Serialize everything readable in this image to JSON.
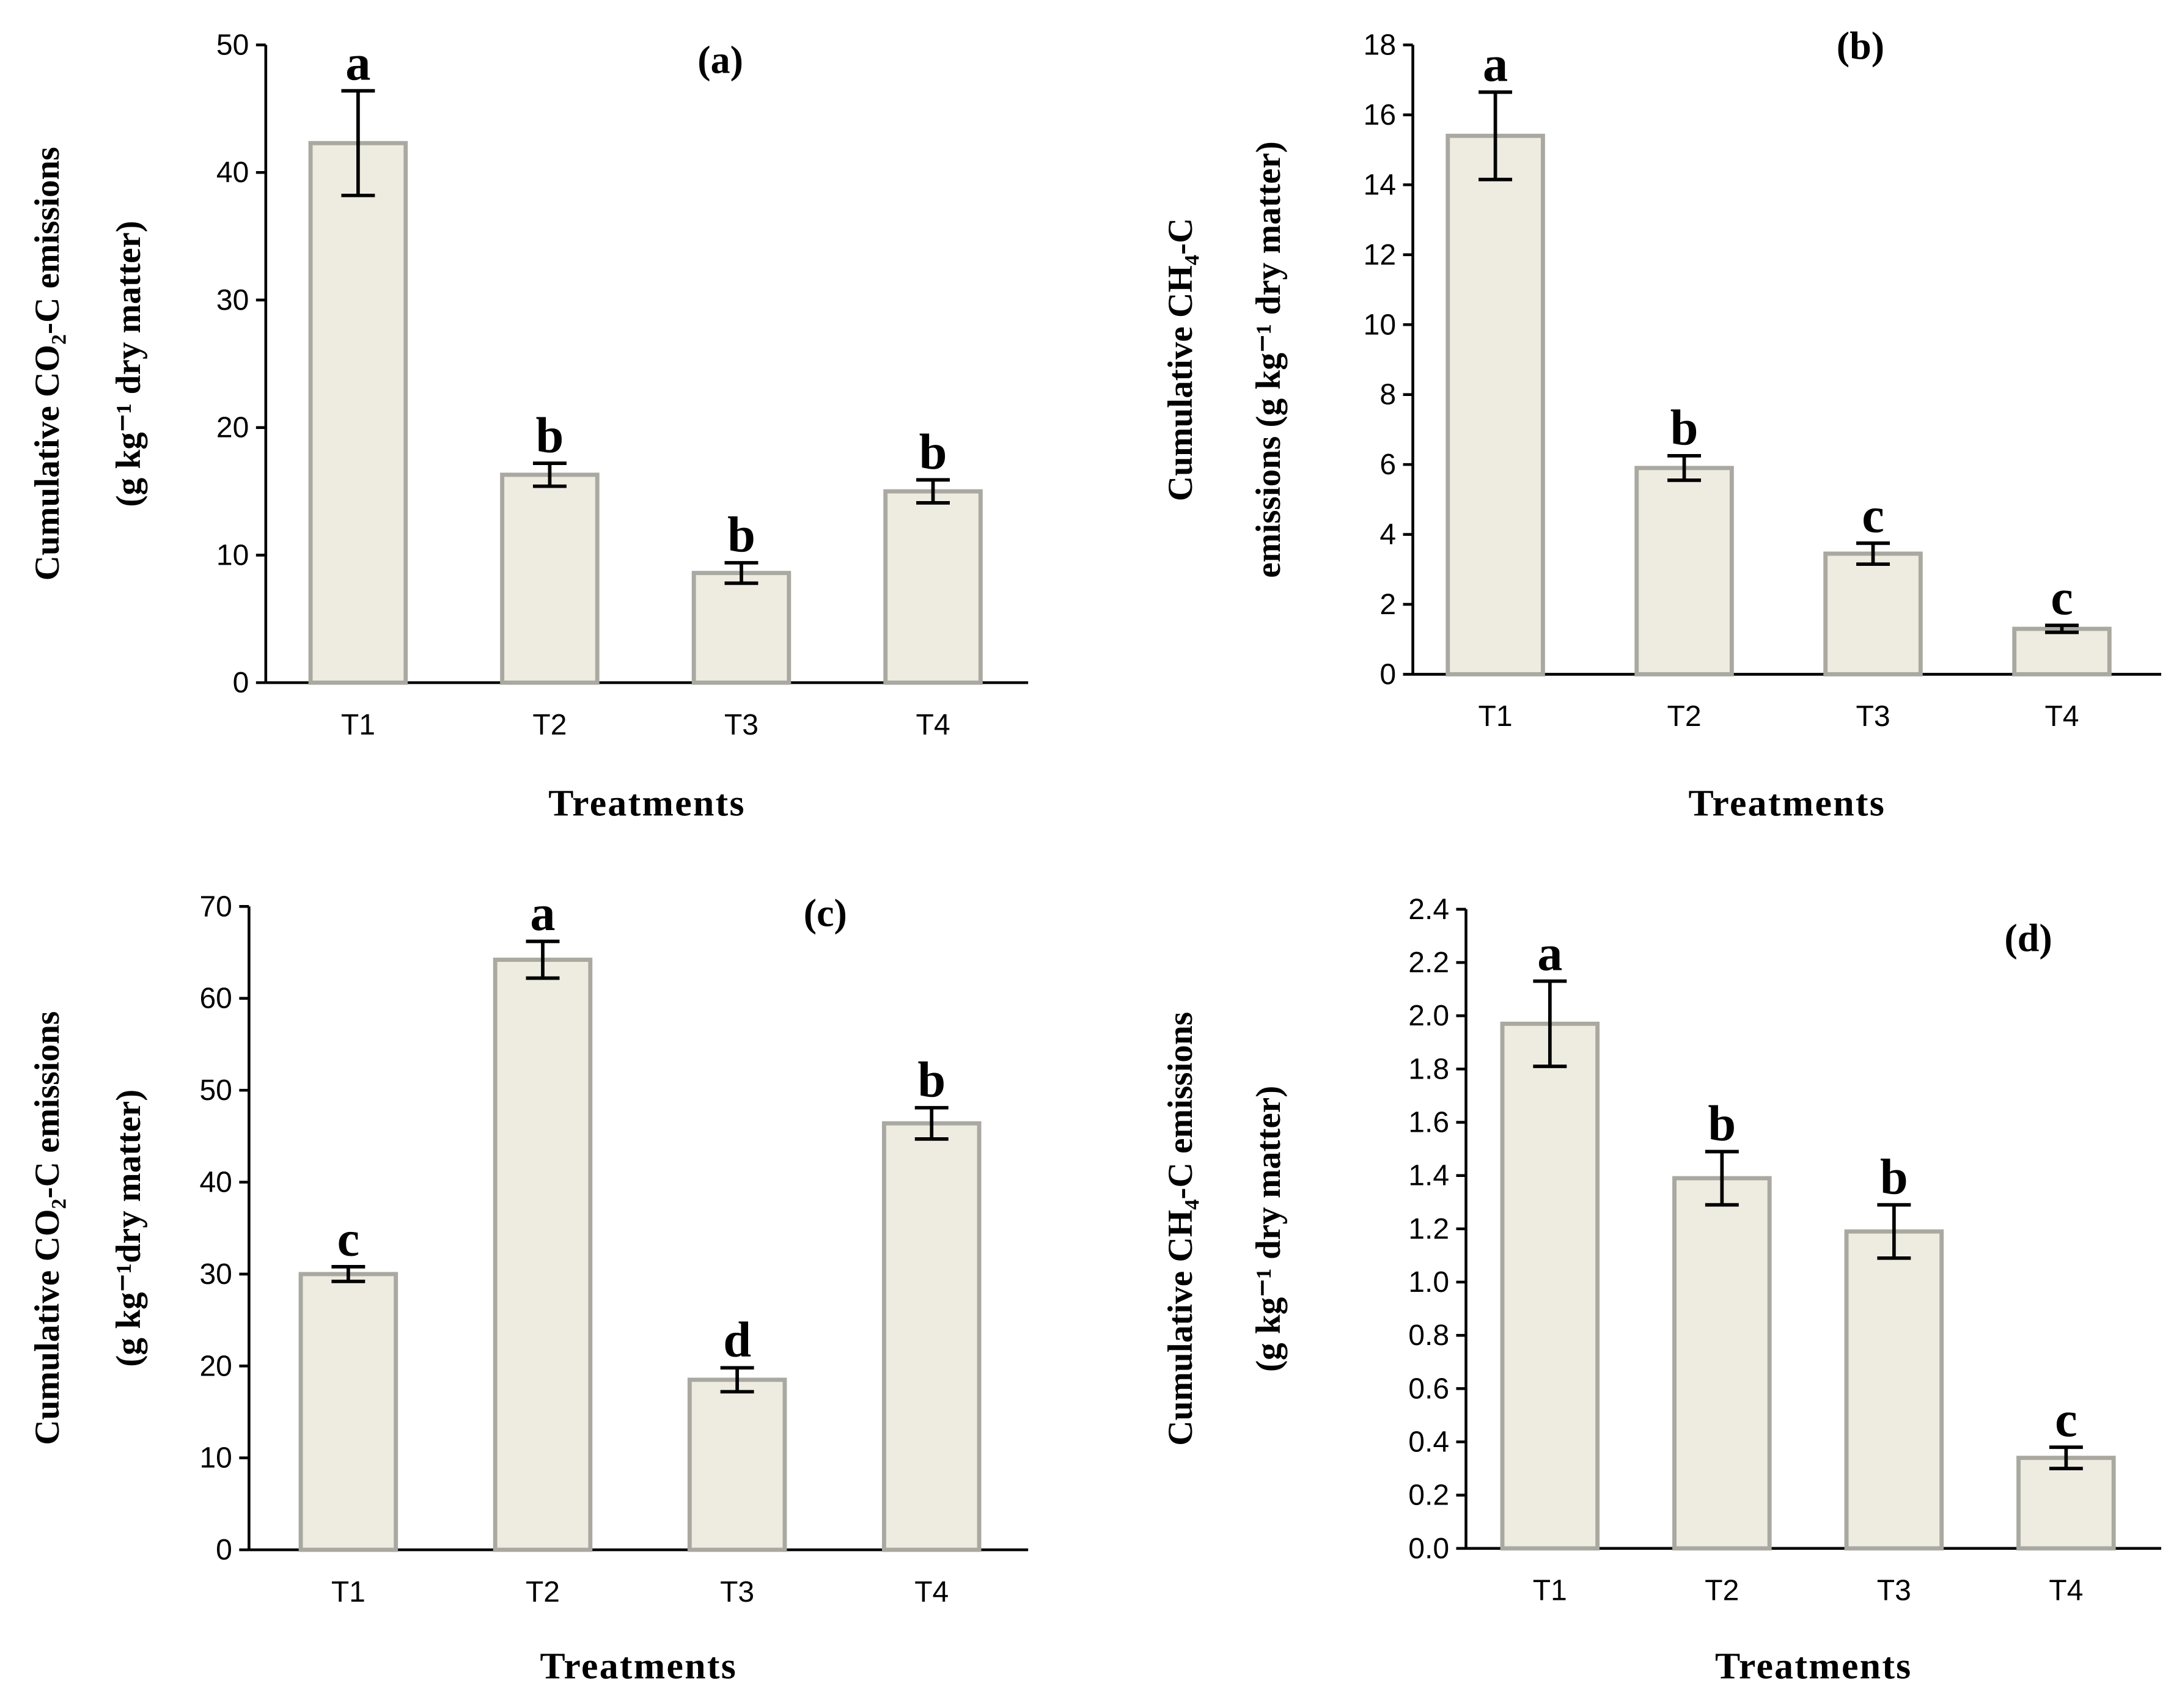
{
  "chart_data": [
    {
      "type": "bar",
      "panel": "(a)",
      "y_label": [
        "Cumulative CO₂-C emissions",
        "(g kg⁻¹ dry matter)"
      ],
      "x_label": "Treatments",
      "categories": [
        "T1",
        "T2",
        "T3",
        "T4"
      ],
      "values": [
        42.3,
        16.3,
        8.6,
        15.0
      ],
      "errors": [
        4.1,
        0.9,
        0.8,
        0.9
      ],
      "annotations": [
        "a",
        "b",
        "b",
        "b"
      ],
      "color": "#eeece1",
      "edge_color": "#a9a9a1",
      "ylim": [
        0,
        50
      ],
      "yticks": [
        0,
        10,
        20,
        30,
        40,
        50
      ]
    },
    {
      "type": "bar",
      "panel": "(b)",
      "y_label": [
        "Cumulative CH₄-C",
        "emissions (g kg⁻¹ dry matter)"
      ],
      "x_label": "Treatments",
      "categories": [
        "T1",
        "T2",
        "T3",
        "T4"
      ],
      "values": [
        15.4,
        5.9,
        3.45,
        1.3
      ],
      "errors": [
        1.25,
        0.35,
        0.3,
        0.1
      ],
      "annotations": [
        "a",
        "b",
        "c",
        "c"
      ],
      "color": "#eeece1",
      "edge_color": "#a9a9a1",
      "ylim": [
        0,
        18
      ],
      "yticks": [
        0,
        2,
        4,
        6,
        8,
        10,
        12,
        14,
        16,
        18
      ]
    },
    {
      "type": "bar",
      "panel": "(c)",
      "y_label": [
        "Cumulative CO₂-C emissions",
        "(g kg⁻¹dry matter)"
      ],
      "x_label": "Treatments",
      "categories": [
        "T1",
        "T2",
        "T3",
        "T4"
      ],
      "values": [
        30.0,
        64.2,
        18.5,
        46.4
      ],
      "errors": [
        0.8,
        2.0,
        1.3,
        1.7
      ],
      "annotations": [
        "c",
        "a",
        "d",
        "b"
      ],
      "color": "#eeece1",
      "edge_color": "#a9a9a1",
      "ylim": [
        0,
        70
      ],
      "yticks": [
        0,
        10,
        20,
        30,
        40,
        50,
        60,
        70
      ]
    },
    {
      "type": "bar",
      "panel": "(d)",
      "y_label": [
        "Cumulative CH₄-C emissions",
        "(g kg⁻¹ dry matter)"
      ],
      "x_label": "Treatments",
      "categories": [
        "T1",
        "T2",
        "T3",
        "T4"
      ],
      "values": [
        1.97,
        1.39,
        1.19,
        0.34
      ],
      "errors": [
        0.16,
        0.1,
        0.1,
        0.04
      ],
      "annotations": [
        "a",
        "b",
        "b",
        "c"
      ],
      "color": "#eeece1",
      "edge_color": "#a9a9a1",
      "ylim": [
        0,
        2.4
      ],
      "yticks": [
        {
          "value": 0,
          "label": "0.0"
        },
        0.2,
        0.4,
        0.6,
        0.8,
        {
          "value": 1,
          "label": "1.0"
        },
        1.2,
        1.4,
        1.6,
        1.8,
        {
          "value": 2,
          "label": "2.0"
        },
        2.2,
        2.4
      ]
    }
  ]
}
